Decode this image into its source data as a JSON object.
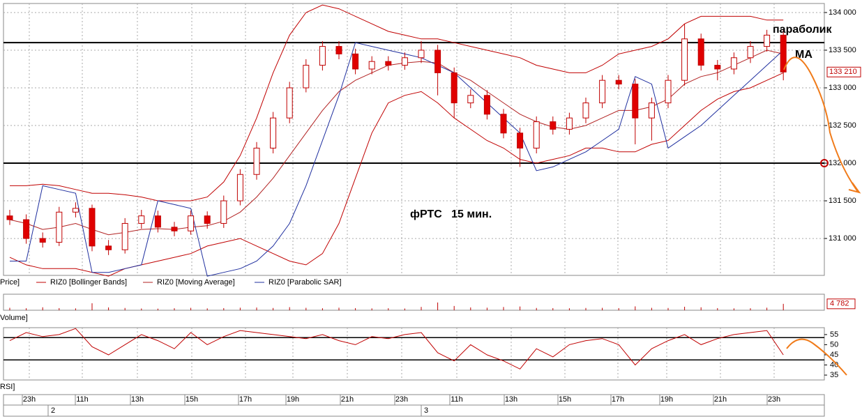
{
  "chart_data": [
    {
      "type": "candlestick",
      "legend_prefix": "Price]",
      "ylim": [
        130510,
        134120
      ],
      "yticks": [
        {
          "value": 131000,
          "label": "131 000"
        },
        {
          "value": 131500,
          "label": "131 500"
        },
        {
          "value": 132000,
          "label": "132 000"
        },
        {
          "value": 132500,
          "label": "132 500"
        },
        {
          "value": 133000,
          "label": "133 000"
        },
        {
          "value": 133500,
          "label": "133 500"
        },
        {
          "value": 134000,
          "label": "134 000"
        }
      ],
      "grid": true,
      "up_color": "#ffffff",
      "down_color": "#e00000",
      "wick_color": "#c00000",
      "levels": [
        133600,
        132000
      ],
      "last_price": {
        "value": 133210,
        "label": "133 210"
      },
      "open": [
        131300,
        131250,
        131000,
        130950,
        131350,
        131400,
        130900,
        130850,
        131200,
        131300,
        131150,
        131100,
        131300,
        131200,
        131500,
        131850,
        132200,
        132600,
        133000,
        133300,
        133550,
        133450,
        133250,
        133350,
        133300,
        133400,
        133500,
        133200,
        132800,
        132900,
        132650,
        132400,
        132200,
        132550,
        132450,
        132600,
        132800,
        133100,
        133050,
        132600,
        132800,
        133100,
        133650,
        133300,
        133250,
        133400,
        133550,
        133700
      ],
      "high": [
        131380,
        131320,
        131080,
        131420,
        131480,
        131450,
        130980,
        131270,
        131380,
        131370,
        131220,
        131370,
        131360,
        131570,
        131920,
        132280,
        132680,
        133080,
        133380,
        133620,
        133620,
        133520,
        133420,
        133420,
        133470,
        133620,
        133570,
        133270,
        132980,
        132970,
        132720,
        132470,
        132620,
        132620,
        132670,
        132870,
        133170,
        133170,
        133120,
        132870,
        133170,
        133850,
        133720,
        133370,
        133470,
        133620,
        133770,
        133770
      ],
      "low": [
        131180,
        130930,
        130880,
        130900,
        131280,
        130830,
        130780,
        130800,
        131130,
        131080,
        131030,
        131050,
        131130,
        131140,
        131440,
        131780,
        132130,
        132530,
        132940,
        133230,
        133380,
        133180,
        133180,
        133230,
        133240,
        133330,
        132900,
        132600,
        132730,
        132580,
        132330,
        131950,
        132130,
        132380,
        132380,
        132530,
        132730,
        132980,
        132250,
        132300,
        132730,
        133030,
        133230,
        133100,
        133180,
        133330,
        133480,
        133100
      ],
      "close": [
        131250,
        131000,
        130950,
        131350,
        131400,
        130900,
        130850,
        131200,
        131300,
        131150,
        131100,
        131300,
        131200,
        131500,
        131850,
        132200,
        132600,
        133000,
        133300,
        133550,
        133450,
        133250,
        133350,
        133300,
        133400,
        133500,
        133200,
        132800,
        132900,
        132650,
        132400,
        132200,
        132550,
        132450,
        132600,
        132800,
        133100,
        133050,
        132600,
        132800,
        133100,
        133650,
        133300,
        133250,
        133400,
        133550,
        133700,
        133210
      ],
      "series": [
        {
          "name": "RIZ0 [Bollinger Bands]",
          "color": "#c00000",
          "upper": [
            131700,
            131700,
            131720,
            131700,
            131650,
            131600,
            131600,
            131580,
            131550,
            131500,
            131500,
            131500,
            131550,
            131750,
            132100,
            132600,
            133200,
            133700,
            134000,
            134100,
            134050,
            133950,
            133850,
            133750,
            133700,
            133650,
            133650,
            133600,
            133550,
            133500,
            133450,
            133400,
            133300,
            133250,
            133200,
            133200,
            133300,
            133450,
            133500,
            133550,
            133650,
            133850,
            133950,
            133950,
            133950,
            133950,
            133900,
            133900
          ],
          "lower": [
            130750,
            130650,
            130600,
            130600,
            130600,
            130550,
            130500,
            130600,
            130650,
            130700,
            130750,
            130800,
            130900,
            130950,
            131000,
            130900,
            130800,
            130700,
            130650,
            130800,
            131200,
            131800,
            132400,
            132800,
            132900,
            132950,
            132800,
            132600,
            132450,
            132300,
            132200,
            132050,
            132000,
            132050,
            132100,
            132200,
            132200,
            132150,
            132150,
            132250,
            132300,
            132500,
            132700,
            132850,
            132950,
            133000,
            133100,
            133200
          ]
        },
        {
          "name": "RIZ0 [Moving Average]",
          "color": "#b22222",
          "values": [
            131250,
            131200,
            131120,
            131150,
            131200,
            131120,
            131050,
            131080,
            131120,
            131130,
            131120,
            131150,
            131170,
            131230,
            131350,
            131550,
            131800,
            132100,
            132400,
            132700,
            132950,
            133100,
            133200,
            133300,
            133330,
            133350,
            133330,
            133200,
            133100,
            132950,
            132800,
            132650,
            132550,
            132480,
            132450,
            132500,
            132600,
            132700,
            132700,
            132750,
            132850,
            133050,
            133150,
            133200,
            133300,
            133400,
            133500,
            133450
          ]
        },
        {
          "name": "RIZ0 [Parabolic SAR]",
          "color": "#1f2f9f",
          "values": [
            130700,
            130700,
            131700,
            131650,
            131600,
            130550,
            130550,
            130600,
            130650,
            131500,
            131450,
            131400,
            130500,
            130550,
            130600,
            130700,
            130900,
            131200,
            131700,
            132300,
            132900,
            133600,
            133550,
            133500,
            133450,
            133400,
            133300,
            133200,
            133000,
            132800,
            132600,
            132400,
            131900,
            131950,
            132050,
            132150,
            132300,
            132450,
            133150,
            133050,
            132200,
            132350,
            132500,
            132700,
            132900,
            133100,
            133300,
            133500
          ]
        }
      ],
      "annotations": [
        "параболик",
        "MA",
        "фРТС   15 мин."
      ]
    },
    {
      "type": "bar",
      "label": "Volume]",
      "color": "#c00000",
      "ylim": [
        0,
        12000
      ],
      "values": [
        1800,
        1500,
        2200,
        1600,
        1400,
        5200,
        2100,
        1700,
        1300,
        1200,
        1500,
        1800,
        1400,
        1600,
        1900,
        2000,
        1700,
        2300,
        1800,
        1500,
        1900,
        1600,
        1400,
        1500,
        1300,
        2500,
        5800,
        3200,
        2100,
        1900,
        2400,
        2800,
        1700,
        1600,
        1500,
        1700,
        1800,
        1600,
        2900,
        1800,
        1700,
        2600,
        2200,
        1600,
        1400,
        1500,
        1900,
        4782
      ],
      "last_value": {
        "value": 4782,
        "label": "4 782"
      }
    },
    {
      "type": "line",
      "label": "RSI]",
      "color": "#c00000",
      "ylim": [
        32.6,
        58.4
      ],
      "yticks": [
        35,
        40,
        45,
        50,
        55
      ],
      "levels": [
        53.5,
        42.5
      ],
      "values": [
        52,
        56,
        54,
        55,
        58,
        49,
        45,
        50,
        55,
        52,
        48,
        56,
        50,
        54,
        57,
        56,
        55,
        54,
        53,
        55,
        52,
        50,
        54,
        53,
        55,
        56,
        46,
        42,
        50,
        45,
        42,
        38,
        48,
        44,
        50,
        52,
        53,
        50,
        40,
        48,
        52,
        55,
        50,
        53,
        55,
        56,
        57,
        45
      ]
    }
  ],
  "time_axis": {
    "labels": [
      "23h",
      "11h",
      "13h",
      "15h",
      "17h",
      "19h",
      "21h",
      "23h",
      "11h",
      "13h",
      "15h",
      "17h",
      "19h",
      "21h",
      "23h"
    ],
    "dates": [
      "2",
      "3"
    ]
  }
}
